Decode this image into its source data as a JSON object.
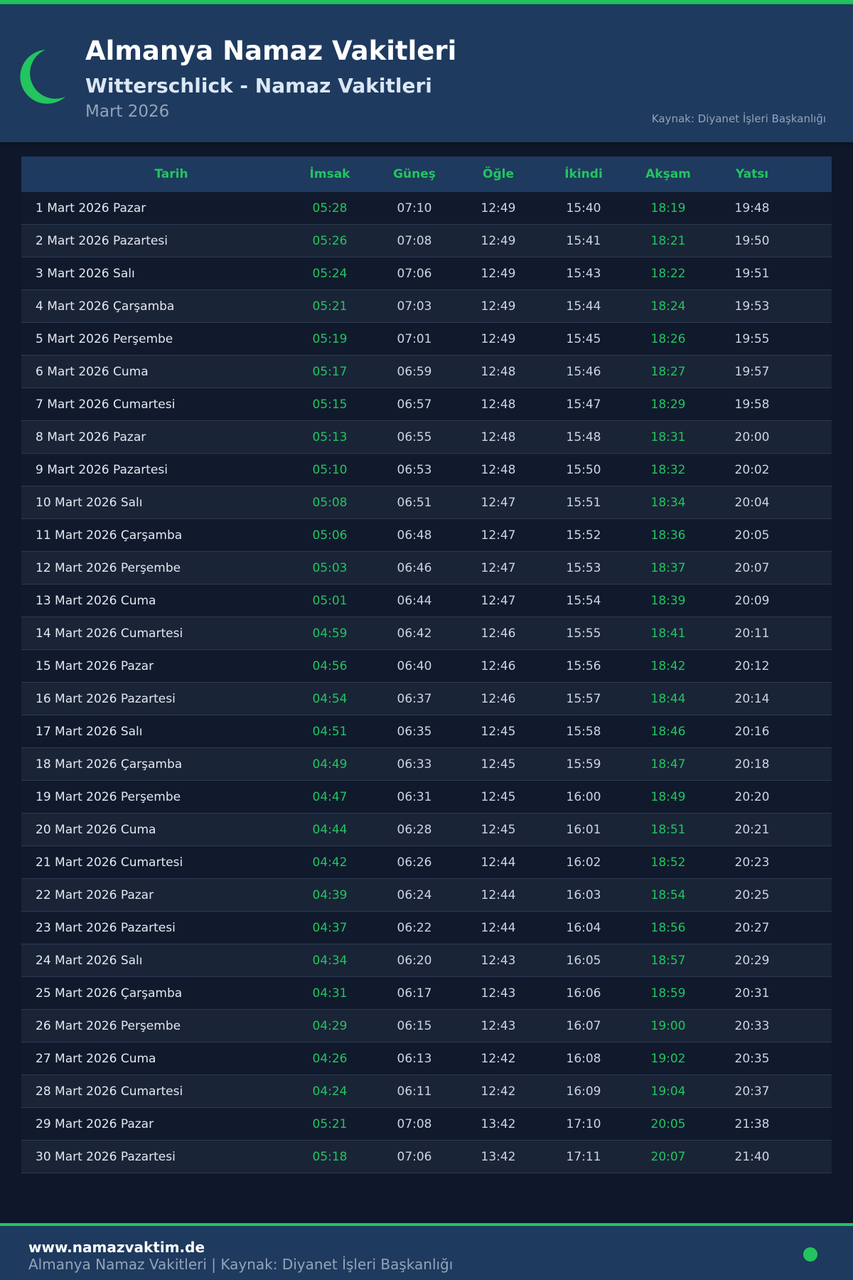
{
  "header": {
    "title": "Almanya Namaz Vakitleri",
    "subtitle": "Witterschlick - Namaz Vakitleri",
    "month": "Mart 2026",
    "source": "Kaynak: Diyanet İşleri Başkanlığı"
  },
  "colors": {
    "accent": "#22c55e",
    "header_bg": "#1e3a5f",
    "page_bg": "#0f172a"
  },
  "icons": {
    "logo": "crescent-moon-icon",
    "footer": "status-dot-icon"
  },
  "table": {
    "columns": [
      "Tarih",
      "İmsak",
      "Güneş",
      "Öğle",
      "İkindi",
      "Akşam",
      "Yatsı"
    ],
    "rows": [
      [
        "1 Mart 2026 Pazar",
        "05:28",
        "07:10",
        "12:49",
        "15:40",
        "18:19",
        "19:48"
      ],
      [
        "2 Mart 2026 Pazartesi",
        "05:26",
        "07:08",
        "12:49",
        "15:41",
        "18:21",
        "19:50"
      ],
      [
        "3 Mart 2026 Salı",
        "05:24",
        "07:06",
        "12:49",
        "15:43",
        "18:22",
        "19:51"
      ],
      [
        "4 Mart 2026 Çarşamba",
        "05:21",
        "07:03",
        "12:49",
        "15:44",
        "18:24",
        "19:53"
      ],
      [
        "5 Mart 2026 Perşembe",
        "05:19",
        "07:01",
        "12:49",
        "15:45",
        "18:26",
        "19:55"
      ],
      [
        "6 Mart 2026 Cuma",
        "05:17",
        "06:59",
        "12:48",
        "15:46",
        "18:27",
        "19:57"
      ],
      [
        "7 Mart 2026 Cumartesi",
        "05:15",
        "06:57",
        "12:48",
        "15:47",
        "18:29",
        "19:58"
      ],
      [
        "8 Mart 2026 Pazar",
        "05:13",
        "06:55",
        "12:48",
        "15:48",
        "18:31",
        "20:00"
      ],
      [
        "9 Mart 2026 Pazartesi",
        "05:10",
        "06:53",
        "12:48",
        "15:50",
        "18:32",
        "20:02"
      ],
      [
        "10 Mart 2026 Salı",
        "05:08",
        "06:51",
        "12:47",
        "15:51",
        "18:34",
        "20:04"
      ],
      [
        "11 Mart 2026 Çarşamba",
        "05:06",
        "06:48",
        "12:47",
        "15:52",
        "18:36",
        "20:05"
      ],
      [
        "12 Mart 2026 Perşembe",
        "05:03",
        "06:46",
        "12:47",
        "15:53",
        "18:37",
        "20:07"
      ],
      [
        "13 Mart 2026 Cuma",
        "05:01",
        "06:44",
        "12:47",
        "15:54",
        "18:39",
        "20:09"
      ],
      [
        "14 Mart 2026 Cumartesi",
        "04:59",
        "06:42",
        "12:46",
        "15:55",
        "18:41",
        "20:11"
      ],
      [
        "15 Mart 2026 Pazar",
        "04:56",
        "06:40",
        "12:46",
        "15:56",
        "18:42",
        "20:12"
      ],
      [
        "16 Mart 2026 Pazartesi",
        "04:54",
        "06:37",
        "12:46",
        "15:57",
        "18:44",
        "20:14"
      ],
      [
        "17 Mart 2026 Salı",
        "04:51",
        "06:35",
        "12:45",
        "15:58",
        "18:46",
        "20:16"
      ],
      [
        "18 Mart 2026 Çarşamba",
        "04:49",
        "06:33",
        "12:45",
        "15:59",
        "18:47",
        "20:18"
      ],
      [
        "19 Mart 2026 Perşembe",
        "04:47",
        "06:31",
        "12:45",
        "16:00",
        "18:49",
        "20:20"
      ],
      [
        "20 Mart 2026 Cuma",
        "04:44",
        "06:28",
        "12:45",
        "16:01",
        "18:51",
        "20:21"
      ],
      [
        "21 Mart 2026 Cumartesi",
        "04:42",
        "06:26",
        "12:44",
        "16:02",
        "18:52",
        "20:23"
      ],
      [
        "22 Mart 2026 Pazar",
        "04:39",
        "06:24",
        "12:44",
        "16:03",
        "18:54",
        "20:25"
      ],
      [
        "23 Mart 2026 Pazartesi",
        "04:37",
        "06:22",
        "12:44",
        "16:04",
        "18:56",
        "20:27"
      ],
      [
        "24 Mart 2026 Salı",
        "04:34",
        "06:20",
        "12:43",
        "16:05",
        "18:57",
        "20:29"
      ],
      [
        "25 Mart 2026 Çarşamba",
        "04:31",
        "06:17",
        "12:43",
        "16:06",
        "18:59",
        "20:31"
      ],
      [
        "26 Mart 2026 Perşembe",
        "04:29",
        "06:15",
        "12:43",
        "16:07",
        "19:00",
        "20:33"
      ],
      [
        "27 Mart 2026 Cuma",
        "04:26",
        "06:13",
        "12:42",
        "16:08",
        "19:02",
        "20:35"
      ],
      [
        "28 Mart 2026 Cumartesi",
        "04:24",
        "06:11",
        "12:42",
        "16:09",
        "19:04",
        "20:37"
      ],
      [
        "29 Mart 2026 Pazar",
        "05:21",
        "07:08",
        "13:42",
        "17:10",
        "20:05",
        "21:38"
      ],
      [
        "30 Mart 2026 Pazartesi",
        "05:18",
        "07:06",
        "13:42",
        "17:11",
        "20:07",
        "21:40"
      ]
    ]
  },
  "footer": {
    "site": "www.namazvaktim.de",
    "text": "Almanya Namaz Vakitleri | Kaynak: Diyanet İşleri Başkanlığı"
  }
}
